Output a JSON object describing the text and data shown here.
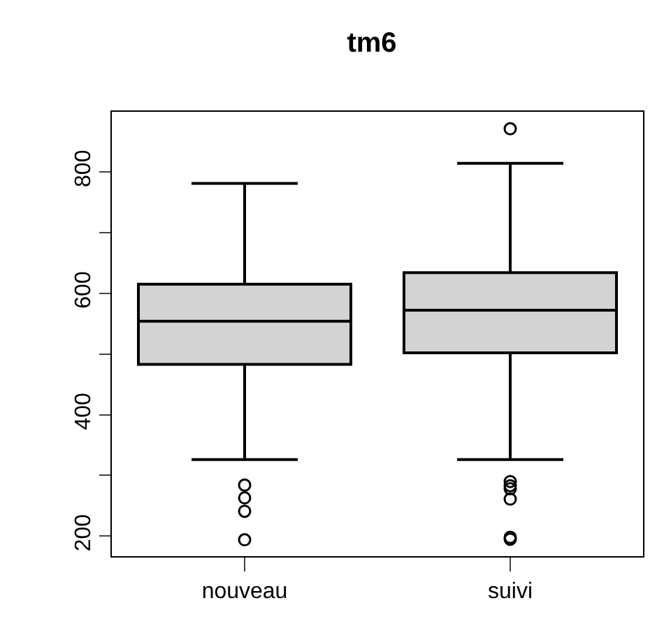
{
  "chart_data": {
    "type": "box",
    "title": "tm6",
    "categories": [
      "nouveau",
      "suivi"
    ],
    "boxes": [
      {
        "low": 326,
        "q1": 483,
        "median": 554,
        "q3": 615,
        "high": 781,
        "outliers": [
          284,
          263,
          241,
          194
        ]
      },
      {
        "low": 326,
        "q1": 502,
        "median": 572,
        "q3": 634,
        "high": 814,
        "outliers": [
          871,
          290,
          283,
          278,
          261,
          198,
          195
        ]
      }
    ],
    "color": "#d3d3d3",
    "ylim": [
      167,
      899
    ],
    "yticks": [
      200,
      {
        "value": 300,
        "label": null
      },
      400,
      {
        "value": 500,
        "label": null
      },
      600,
      {
        "value": 700,
        "label": null
      },
      800
    ],
    "marker": "circle"
  }
}
